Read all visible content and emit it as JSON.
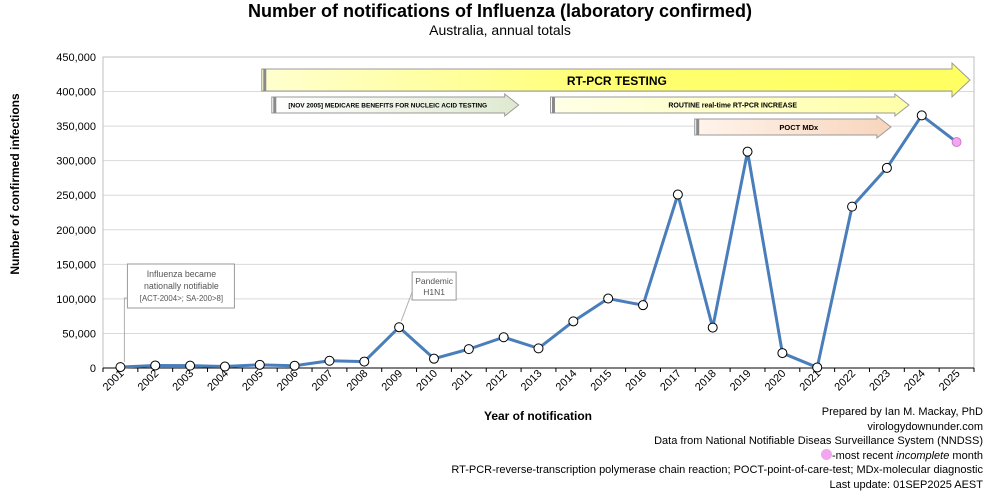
{
  "chart_data": {
    "type": "line",
    "title": "Number of notifications of Influenza (laboratory confirmed)",
    "subtitle": "Australia, annual totals",
    "xlabel": "Year of notification",
    "ylabel": "Number of confirmed infections",
    "ylim": [
      0,
      450000
    ],
    "yticks": [
      0,
      50000,
      100000,
      150000,
      200000,
      250000,
      300000,
      350000,
      400000,
      450000
    ],
    "ytick_labels": [
      "0",
      "50,000",
      "100,000",
      "150,000",
      "200,000",
      "250,000",
      "300,000",
      "350,000",
      "400,000",
      "450,000"
    ],
    "grid": true,
    "categories": [
      "2001",
      "2002",
      "2003",
      "2004",
      "2005",
      "2006",
      "2007",
      "2008",
      "2009",
      "2010",
      "2011",
      "2012",
      "2013",
      "2014",
      "2015",
      "2016",
      "2017",
      "2018",
      "2019",
      "2020",
      "2021",
      "2022",
      "2023",
      "2024",
      "2025"
    ],
    "values": [
      1300,
      3700,
      3400,
      2100,
      4600,
      3300,
      10500,
      9300,
      59000,
      13500,
      27300,
      44500,
      28400,
      67500,
      100500,
      90900,
      251000,
      58500,
      313000,
      21600,
      800,
      233500,
      289500,
      365500,
      327000
    ],
    "series_color": "#4a7ebb",
    "incomplete_marker_color": "#f4a5f0",
    "annotations": [
      {
        "text": "Influenza became nationally notifiable [ACT-2004>; SA-200>8]",
        "year": "2001"
      },
      {
        "text": "Pandemic H1N1",
        "year": "2009"
      }
    ],
    "bands": [
      {
        "label": "RT-PCR TESTING",
        "from": "2005",
        "to": "2025",
        "color": "#ffff80"
      },
      {
        "label": "[NOV 2005] MEDICARE BENEFITS FOR NUCLEIC ACID TESTING",
        "from": "2005",
        "to": "2012",
        "color": "#e8f0dc"
      },
      {
        "label": "ROUTINE real-time RT-PCR INCREASE",
        "from": "2013",
        "to": "2023",
        "color": "#ffffc8"
      },
      {
        "label": "POCT MDx",
        "from": "2018",
        "to": "2023",
        "color": "#fce4d6"
      }
    ]
  },
  "credits": {
    "line1": "Prepared by Ian M. Mackay, PhD",
    "line2": "virologydownunder.com",
    "line3": "Data from National Notifiable Diseas Surveillance System (NNDSS)",
    "line4_prefix": "-most recent ",
    "line4_em": "incomplete",
    "line4_suffix": " month",
    "line5": "RT-PCR-reverse-transcription polymerase chain reaction; POCT-point-of-care-test; MDx-molecular diagnostic",
    "line6": "Last update: 01SEP2025 AEST"
  }
}
